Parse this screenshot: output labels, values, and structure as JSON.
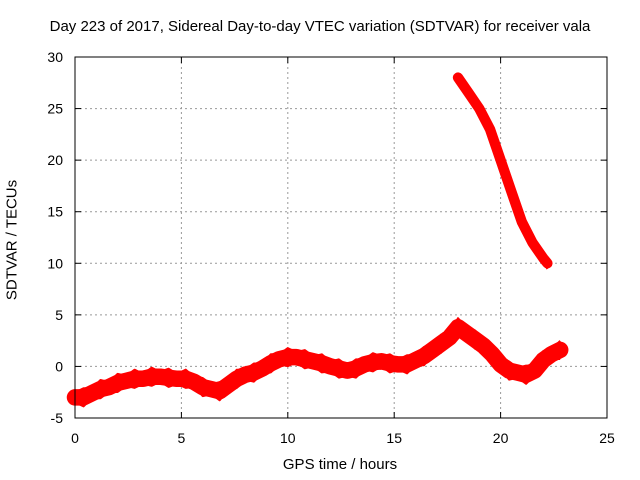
{
  "chart_data": {
    "type": "line",
    "title": "Day 223 of 2017, Sidereal Day-to-day VTEC variation (SDTVAR) for receiver vala",
    "xlabel": "GPS time / hours",
    "ylabel": "SDTVAR / TECUs",
    "xlim": [
      0,
      25
    ],
    "ylim": [
      -5,
      30
    ],
    "xticks": [
      0,
      5,
      10,
      15,
      20,
      25
    ],
    "yticks": [
      -5,
      0,
      5,
      10,
      15,
      20,
      25,
      30
    ],
    "grid": true,
    "series": [
      {
        "name": "SDTVAR main",
        "color": "#ff0000",
        "band": 0.8,
        "x": [
          0.0,
          0.4,
          0.8,
          1.2,
          1.6,
          2.0,
          2.4,
          2.8,
          3.2,
          3.6,
          4.0,
          4.4,
          4.8,
          5.2,
          5.6,
          6.0,
          6.4,
          6.8,
          7.2,
          7.6,
          8.0,
          8.4,
          8.8,
          9.2,
          9.6,
          10.0,
          10.4,
          10.8,
          11.2,
          11.6,
          12.0,
          12.4,
          12.8,
          13.2,
          13.6,
          14.0,
          14.4,
          14.8,
          15.2,
          15.6,
          16.0,
          16.4,
          16.8,
          17.2,
          17.6,
          18.0,
          18.4,
          18.8,
          19.2,
          19.6,
          20.0,
          20.4,
          20.8,
          21.2,
          21.6,
          22.0,
          22.4,
          22.8
        ],
        "y": [
          -3.0,
          -3.0,
          -2.6,
          -2.2,
          -2.0,
          -1.6,
          -1.4,
          -1.2,
          -1.2,
          -1.0,
          -1.0,
          -1.1,
          -1.2,
          -1.2,
          -1.5,
          -2.0,
          -2.2,
          -2.4,
          -1.8,
          -1.2,
          -0.8,
          -0.6,
          -0.2,
          0.3,
          0.7,
          0.9,
          0.9,
          0.7,
          0.5,
          0.3,
          0.0,
          -0.2,
          -0.4,
          -0.2,
          0.2,
          0.4,
          0.5,
          0.3,
          0.2,
          0.2,
          0.6,
          1.0,
          1.6,
          2.2,
          2.8,
          3.8,
          3.2,
          2.6,
          2.0,
          1.2,
          0.2,
          -0.4,
          -0.6,
          -0.8,
          -0.4,
          0.6,
          1.2,
          1.6
        ]
      },
      {
        "name": "SDTVAR secondary",
        "color": "#ff0000",
        "band": 0.5,
        "x": [
          18.0,
          18.5,
          19.0,
          19.5,
          20.0,
          20.5,
          21.0,
          21.5,
          22.0,
          22.2
        ],
        "y": [
          28.0,
          26.5,
          25.0,
          23.0,
          20.0,
          17.0,
          14.0,
          12.0,
          10.5,
          10.0
        ]
      }
    ]
  }
}
